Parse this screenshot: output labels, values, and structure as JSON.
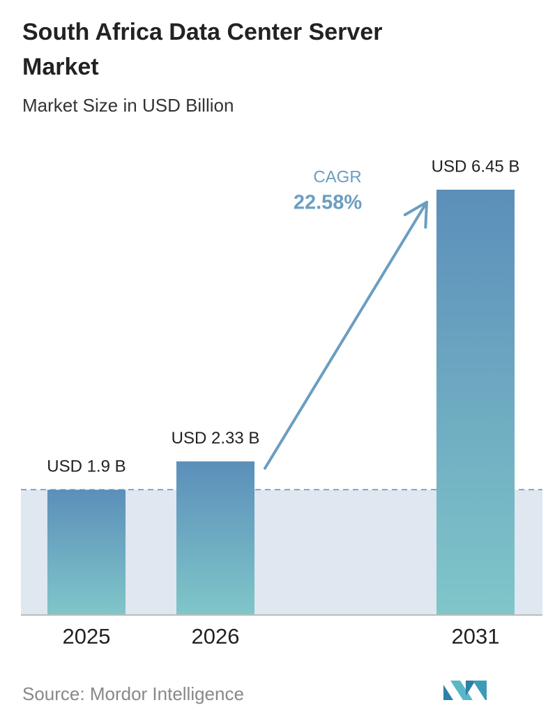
{
  "chart_data": {
    "type": "bar",
    "title": "South Africa Data Center Server Market",
    "subtitle": "Market Size in USD Billion",
    "categories": [
      "2025",
      "2026",
      "2031"
    ],
    "values": [
      1.9,
      2.33,
      6.45
    ],
    "value_labels": [
      "USD 1.9 B",
      "USD 2.33 B",
      "USD 6.45 B"
    ],
    "colors": {
      "top": "#5b8fba",
      "bottom": "#80c6c9"
    },
    "annotation": {
      "label": "CAGR",
      "text": "22.58%"
    },
    "source": "Source: Mordor Intelligence"
  }
}
